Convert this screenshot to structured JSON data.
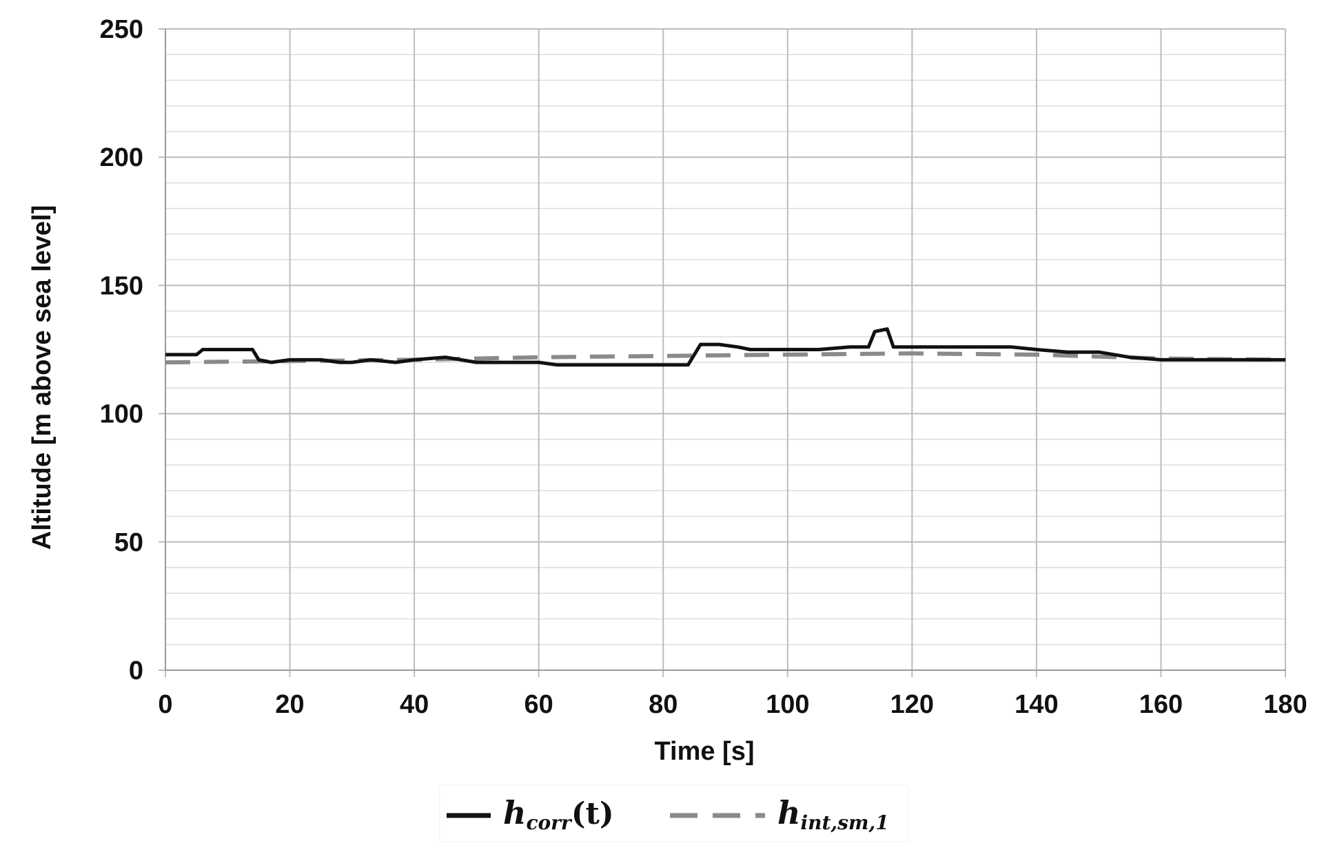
{
  "chart_data": {
    "type": "line",
    "title": "",
    "xlabel": "Time [s]",
    "ylabel": "Altitude [m above sea level]",
    "xlim": [
      0,
      180
    ],
    "ylim": [
      0,
      250
    ],
    "x_ticks": [
      0,
      20,
      40,
      60,
      80,
      100,
      120,
      140,
      160,
      180
    ],
    "y_ticks": [
      0,
      50,
      100,
      150,
      200,
      250
    ],
    "x_tick_labels": [
      "0",
      "20",
      "40",
      "60",
      "80",
      "100",
      "120",
      "140",
      "160",
      "180"
    ],
    "y_tick_labels": [
      "0",
      "50",
      "100",
      "150",
      "200",
      "250"
    ],
    "grid": true,
    "minor_grid_y_step": 10,
    "legend_position": "bottom",
    "series": [
      {
        "name": "h_corr(t)",
        "legend_main": "h",
        "legend_sub": "corr",
        "legend_suffix": "(t)",
        "color": "#111111",
        "style": "solid",
        "x": [
          0,
          5,
          5.5,
          6,
          14,
          15,
          17,
          20,
          25,
          28,
          30,
          33,
          37,
          40,
          45,
          50,
          55,
          60,
          63,
          70,
          80,
          84,
          86,
          89,
          92,
          94,
          100,
          105,
          110,
          113,
          114,
          116,
          117,
          120,
          125,
          130,
          133,
          136,
          140,
          145,
          150,
          155,
          160,
          165,
          170,
          175,
          180
        ],
        "values": [
          123,
          123,
          124,
          125,
          125,
          121,
          120,
          121,
          121,
          120,
          120,
          121,
          120,
          121,
          122,
          120,
          120,
          120,
          119,
          119,
          119,
          119,
          127,
          127,
          126,
          125,
          125,
          125,
          126,
          126,
          132,
          133,
          126,
          126,
          126,
          126,
          126,
          126,
          125,
          124,
          124,
          122,
          121,
          121,
          121,
          121,
          121
        ]
      },
      {
        "name": "h_int,sm,1",
        "legend_main": "h",
        "legend_sub": "int,sm,1",
        "legend_suffix": "",
        "color": "#8a8a8a",
        "style": "dashed",
        "x": [
          0,
          20,
          40,
          60,
          80,
          100,
          120,
          140,
          160,
          180
        ],
        "values": [
          120,
          120.5,
          121,
          122,
          122.5,
          123,
          123.5,
          123,
          121.5,
          121
        ]
      }
    ]
  }
}
